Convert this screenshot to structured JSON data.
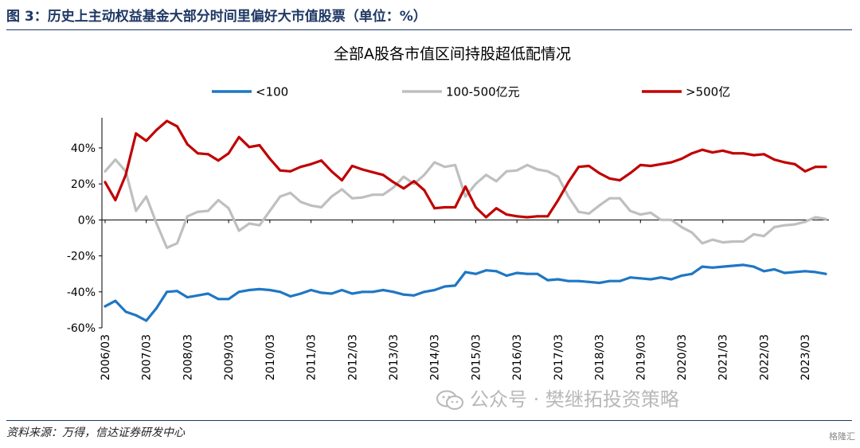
{
  "figure_title": "图 3：历史上主动权益基金大部分时间里偏好大市值股票（单位：%）",
  "source": "资料来源：万得，信达证券研发中心",
  "watermark": "公众号 · 樊继拓投资策略",
  "corner_badge": "格隆汇",
  "chart_data": {
    "type": "line",
    "title": "全部A股各市值区间持股超低配情况",
    "xlabel": "",
    "ylabel": "",
    "ylim": [
      -60,
      55
    ],
    "yticks": [
      -60,
      -40,
      -20,
      0,
      20,
      40
    ],
    "ytick_labels": [
      "-60%",
      "-40%",
      "-20%",
      "0%",
      "20%",
      "40%"
    ],
    "xtick_labels": [
      "2006/03",
      "2007/03",
      "2008/03",
      "2009/03",
      "2010/03",
      "2011/03",
      "2012/03",
      "2013/03",
      "2014/03",
      "2015/03",
      "2016/03",
      "2017/03",
      "2018/03",
      "2019/03",
      "2020/03",
      "2021/03",
      "2022/03",
      "2023/03"
    ],
    "legend_position": "top",
    "x": [
      "2006/03",
      "2006/06",
      "2006/09",
      "2006/12",
      "2007/03",
      "2007/06",
      "2007/09",
      "2007/12",
      "2008/03",
      "2008/06",
      "2008/09",
      "2008/12",
      "2009/03",
      "2009/06",
      "2009/09",
      "2009/12",
      "2010/03",
      "2010/06",
      "2010/09",
      "2010/12",
      "2011/03",
      "2011/06",
      "2011/09",
      "2011/12",
      "2012/03",
      "2012/06",
      "2012/09",
      "2012/12",
      "2013/03",
      "2013/06",
      "2013/09",
      "2013/12",
      "2014/03",
      "2014/06",
      "2014/09",
      "2014/12",
      "2015/03",
      "2015/06",
      "2015/09",
      "2015/12",
      "2016/03",
      "2016/06",
      "2016/09",
      "2016/12",
      "2017/03",
      "2017/06",
      "2017/09",
      "2017/12",
      "2018/03",
      "2018/06",
      "2018/09",
      "2018/12",
      "2019/03",
      "2019/06",
      "2019/09",
      "2019/12",
      "2020/03",
      "2020/06",
      "2020/09",
      "2020/12",
      "2021/03",
      "2021/06",
      "2021/09",
      "2021/12",
      "2022/03",
      "2022/06",
      "2022/09",
      "2022/12",
      "2023/03",
      "2023/06",
      "2023/09"
    ],
    "series": [
      {
        "name": "<100",
        "color": "#1f77c4",
        "values": [
          -48,
          -45,
          -51,
          -53,
          -56,
          -49,
          -40,
          -39.5,
          -43,
          -42,
          -41,
          -44,
          -44,
          -40,
          -39,
          -38.5,
          -39,
          -40,
          -42.5,
          -41,
          -39,
          -40.5,
          -41,
          -39,
          -41,
          -40,
          -40,
          -39,
          -40,
          -41.5,
          -42,
          -40,
          -39,
          -37,
          -36.5,
          -29,
          -30,
          -28,
          -28.5,
          -31,
          -29.5,
          -30,
          -30,
          -33.5,
          -33,
          -34,
          -34,
          -34.5,
          -35,
          -34,
          -34,
          -32,
          -32.5,
          -33,
          -32,
          -33,
          -31,
          -30,
          -26,
          -26.5,
          -26,
          -25.5,
          -25,
          -26,
          -28.5,
          -27.5,
          -29.5,
          -29,
          -28.5,
          -29,
          -30
        ]
      },
      {
        "name": "100-500亿元",
        "color": "#bfbfbf",
        "values": [
          27,
          33.5,
          27,
          5,
          13,
          -2,
          -15.5,
          -13,
          2,
          4.5,
          5,
          11,
          6.5,
          -6,
          -2,
          -3,
          5,
          13,
          15,
          10,
          8,
          7,
          13,
          17,
          12,
          12.5,
          14,
          14,
          18,
          24,
          20,
          25,
          32,
          29.5,
          30.5,
          13,
          20,
          25,
          21.5,
          27,
          27.5,
          30.5,
          28,
          27,
          24,
          13,
          4.5,
          3.5,
          8,
          12,
          12,
          5,
          3,
          4,
          0,
          0,
          -4,
          -7,
          -13,
          -11,
          -12.5,
          -12,
          -12,
          -8,
          -9,
          -4,
          -3,
          -2.5,
          -1,
          1.5,
          0.5
        ]
      },
      {
        "name": ">500亿",
        "color": "#c00000",
        "values": [
          21,
          11,
          25,
          48,
          44,
          50,
          55,
          52,
          42,
          37,
          36.5,
          33,
          37,
          46,
          40.5,
          41.5,
          34,
          27.5,
          27,
          29.5,
          31,
          33,
          27,
          22,
          30,
          28,
          26.5,
          25,
          21,
          17.5,
          21.5,
          16.5,
          6.5,
          7,
          7,
          18.5,
          7,
          1.5,
          6.5,
          3,
          2,
          1.5,
          2,
          2,
          11,
          21,
          29.5,
          30,
          26,
          23,
          22,
          26,
          30.5,
          30,
          31,
          32,
          34,
          37,
          39,
          37.5,
          38.5,
          37,
          37,
          36,
          36.5,
          33.5,
          32,
          31,
          27,
          29.5,
          29.5
        ]
      }
    ]
  }
}
